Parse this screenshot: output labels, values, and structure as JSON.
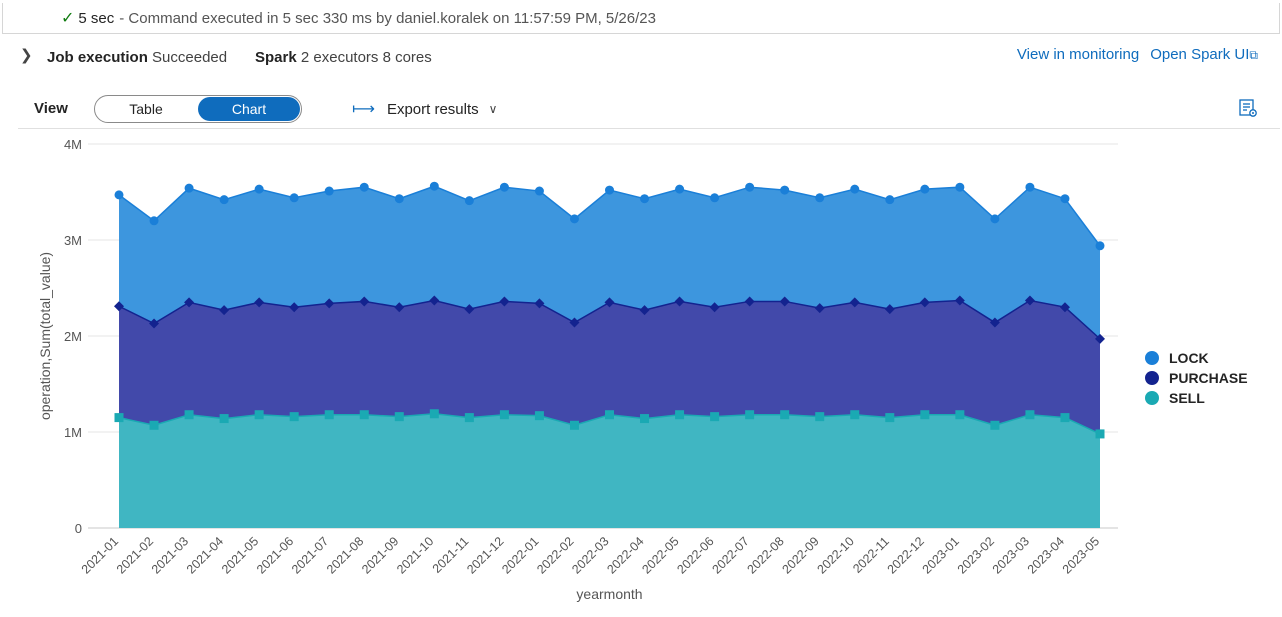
{
  "status": {
    "duration": "5 sec",
    "message": "- Command executed in 5 sec 330 ms by daniel.koralek on 11:57:59 PM, 5/26/23"
  },
  "job": {
    "label": "Job execution",
    "status": "Succeeded",
    "spark_label": "Spark",
    "spark_value": "2 executors 8 cores"
  },
  "links": {
    "monitoring": "View in monitoring",
    "spark_ui": "Open Spark UI"
  },
  "toolbar": {
    "view_label": "View",
    "tabs": [
      "Table",
      "Chart"
    ],
    "active_tab": "Chart",
    "export_label": "Export results"
  },
  "colors": {
    "accent": "#0f6cbd",
    "lock": "#1a7fd8",
    "purchase": "#13238f",
    "sell": "#1aa9b3"
  },
  "chart_data": {
    "type": "area",
    "stacked": true,
    "xlabel": "yearmonth",
    "ylabel": "operation,Sum(total_value)",
    "ylim": [
      0,
      4000000
    ],
    "y_ticks": [
      "0",
      "1M",
      "2M",
      "3M",
      "4M"
    ],
    "y_tick_values": [
      0,
      1000000,
      2000000,
      3000000,
      4000000
    ],
    "grid": true,
    "legend_position": "right",
    "categories": [
      "2021-01",
      "2021-02",
      "2021-03",
      "2021-04",
      "2021-05",
      "2021-06",
      "2021-07",
      "2021-08",
      "2021-09",
      "2021-10",
      "2021-11",
      "2021-12",
      "2022-01",
      "2022-02",
      "2022-03",
      "2022-04",
      "2022-05",
      "2022-06",
      "2022-07",
      "2022-08",
      "2022-09",
      "2022-10",
      "2022-11",
      "2022-12",
      "2023-01",
      "2023-02",
      "2023-03",
      "2023-04",
      "2023-05"
    ],
    "series": [
      {
        "name": "SELL",
        "marker": "square",
        "values": [
          1150000,
          1070000,
          1180000,
          1140000,
          1180000,
          1160000,
          1180000,
          1180000,
          1160000,
          1190000,
          1150000,
          1180000,
          1170000,
          1070000,
          1180000,
          1140000,
          1180000,
          1160000,
          1180000,
          1180000,
          1160000,
          1180000,
          1150000,
          1180000,
          1180000,
          1070000,
          1180000,
          1150000,
          980000
        ]
      },
      {
        "name": "PURCHASE",
        "marker": "diamond",
        "values": [
          1160000,
          1060000,
          1170000,
          1130000,
          1170000,
          1140000,
          1160000,
          1180000,
          1140000,
          1180000,
          1130000,
          1180000,
          1170000,
          1070000,
          1170000,
          1130000,
          1180000,
          1140000,
          1180000,
          1180000,
          1130000,
          1170000,
          1130000,
          1170000,
          1190000,
          1070000,
          1190000,
          1150000,
          990000
        ]
      },
      {
        "name": "LOCK",
        "marker": "circle",
        "values": [
          1160000,
          1070000,
          1190000,
          1150000,
          1180000,
          1140000,
          1170000,
          1190000,
          1130000,
          1190000,
          1130000,
          1190000,
          1170000,
          1080000,
          1170000,
          1160000,
          1170000,
          1140000,
          1190000,
          1160000,
          1150000,
          1180000,
          1140000,
          1180000,
          1180000,
          1080000,
          1180000,
          1130000,
          970000
        ]
      }
    ]
  }
}
